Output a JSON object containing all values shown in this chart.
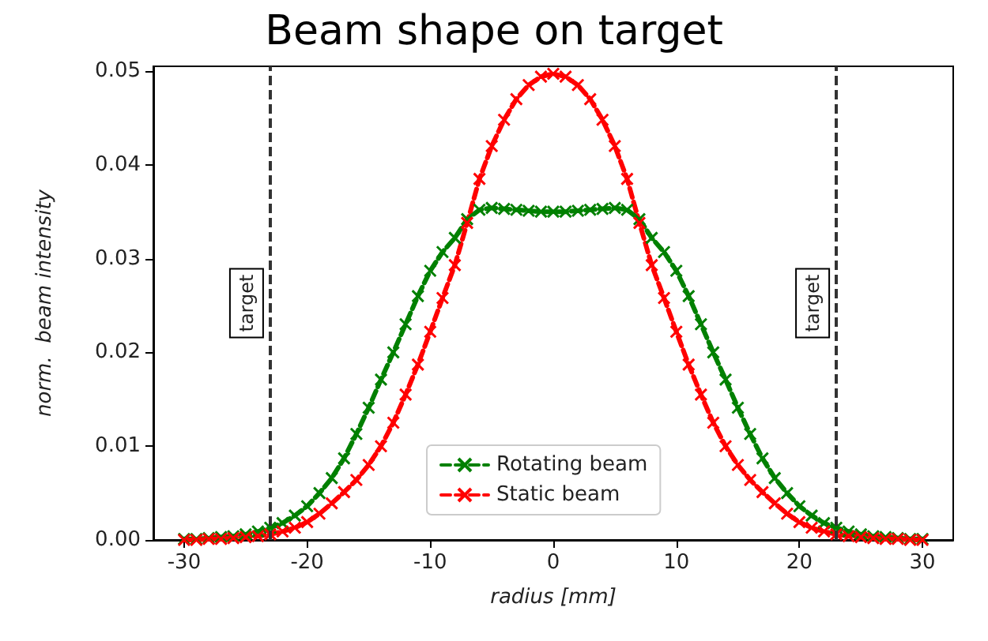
{
  "chart_data": {
    "type": "line",
    "title": "Beam shape on target",
    "xlabel": "radius [mm]",
    "ylabel": "norm.  beam intensity",
    "x": [
      -30,
      -29,
      -28,
      -27,
      -26,
      -25,
      -24,
      -23,
      -22,
      -21,
      -20,
      -19,
      -18,
      -17,
      -16,
      -15,
      -14,
      -13,
      -12,
      -11,
      -10,
      -9,
      -8,
      -7,
      -6,
      -5,
      -4,
      -3,
      -2,
      -1,
      0,
      1,
      2,
      3,
      4,
      5,
      6,
      7,
      8,
      9,
      10,
      11,
      12,
      13,
      14,
      15,
      16,
      17,
      18,
      19,
      20,
      21,
      22,
      23,
      24,
      25,
      26,
      27,
      28,
      29,
      30
    ],
    "series": [
      {
        "name": "Rotating beam",
        "color": "#008000",
        "values": [
          0.0001,
          0.0001,
          0.0002,
          0.0003,
          0.0004,
          0.0006,
          0.0009,
          0.0013,
          0.0018,
          0.0026,
          0.0036,
          0.005,
          0.0066,
          0.0087,
          0.0113,
          0.0141,
          0.0171,
          0.02,
          0.023,
          0.026,
          0.0287,
          0.0307,
          0.0322,
          0.0342,
          0.0352,
          0.0354,
          0.0353,
          0.0352,
          0.0351,
          0.035,
          0.035,
          0.035,
          0.0351,
          0.0352,
          0.0353,
          0.0354,
          0.0352,
          0.0342,
          0.0322,
          0.0307,
          0.0287,
          0.026,
          0.023,
          0.02,
          0.0171,
          0.0141,
          0.0113,
          0.0087,
          0.0066,
          0.005,
          0.0036,
          0.0026,
          0.0018,
          0.0013,
          0.0009,
          0.0006,
          0.0004,
          0.0003,
          0.0002,
          0.0001,
          0.0001
        ]
      },
      {
        "name": "Static beam",
        "color": "#ff0000",
        "values": [
          0.0,
          0.0,
          0.0001,
          0.0001,
          0.0002,
          0.0003,
          0.0004,
          0.0006,
          0.0009,
          0.0013,
          0.0019,
          0.0028,
          0.0039,
          0.0051,
          0.0064,
          0.008,
          0.01,
          0.0125,
          0.0155,
          0.0187,
          0.0222,
          0.0258,
          0.0293,
          0.0338,
          0.0385,
          0.042,
          0.0448,
          0.047,
          0.0485,
          0.0494,
          0.0497,
          0.0494,
          0.0485,
          0.047,
          0.0448,
          0.042,
          0.0385,
          0.0338,
          0.0293,
          0.0258,
          0.0222,
          0.0187,
          0.0155,
          0.0125,
          0.01,
          0.008,
          0.0064,
          0.0051,
          0.0039,
          0.0028,
          0.0019,
          0.0013,
          0.0009,
          0.0006,
          0.0004,
          0.0003,
          0.0002,
          0.0001,
          0.0001,
          0.0,
          0.0
        ]
      }
    ],
    "xlim": [
      -32.5,
      32.5
    ],
    "xticks": [
      -30,
      -20,
      -10,
      0,
      10,
      20,
      30
    ],
    "ylim": [
      0,
      0.0505
    ],
    "yticks": [
      {
        "value": 0,
        "label": "0.00"
      },
      {
        "value": 0.01,
        "label": "0.01"
      },
      {
        "value": 0.02,
        "label": "0.02"
      },
      {
        "value": 0.03,
        "label": "0.03"
      },
      {
        "value": 0.04,
        "label": "0.04"
      },
      {
        "value": 0.05,
        "label": "0.05"
      }
    ],
    "ref_lines": [
      {
        "axis": "x",
        "value": -23,
        "label": "target",
        "color": "#333333",
        "line_style": "dashed"
      },
      {
        "axis": "x",
        "value": 23,
        "label": "target",
        "color": "#333333",
        "line_style": "dashed"
      }
    ],
    "marker": "cross",
    "line_style": "dashed",
    "legend": "bottom",
    "grid": false
  }
}
